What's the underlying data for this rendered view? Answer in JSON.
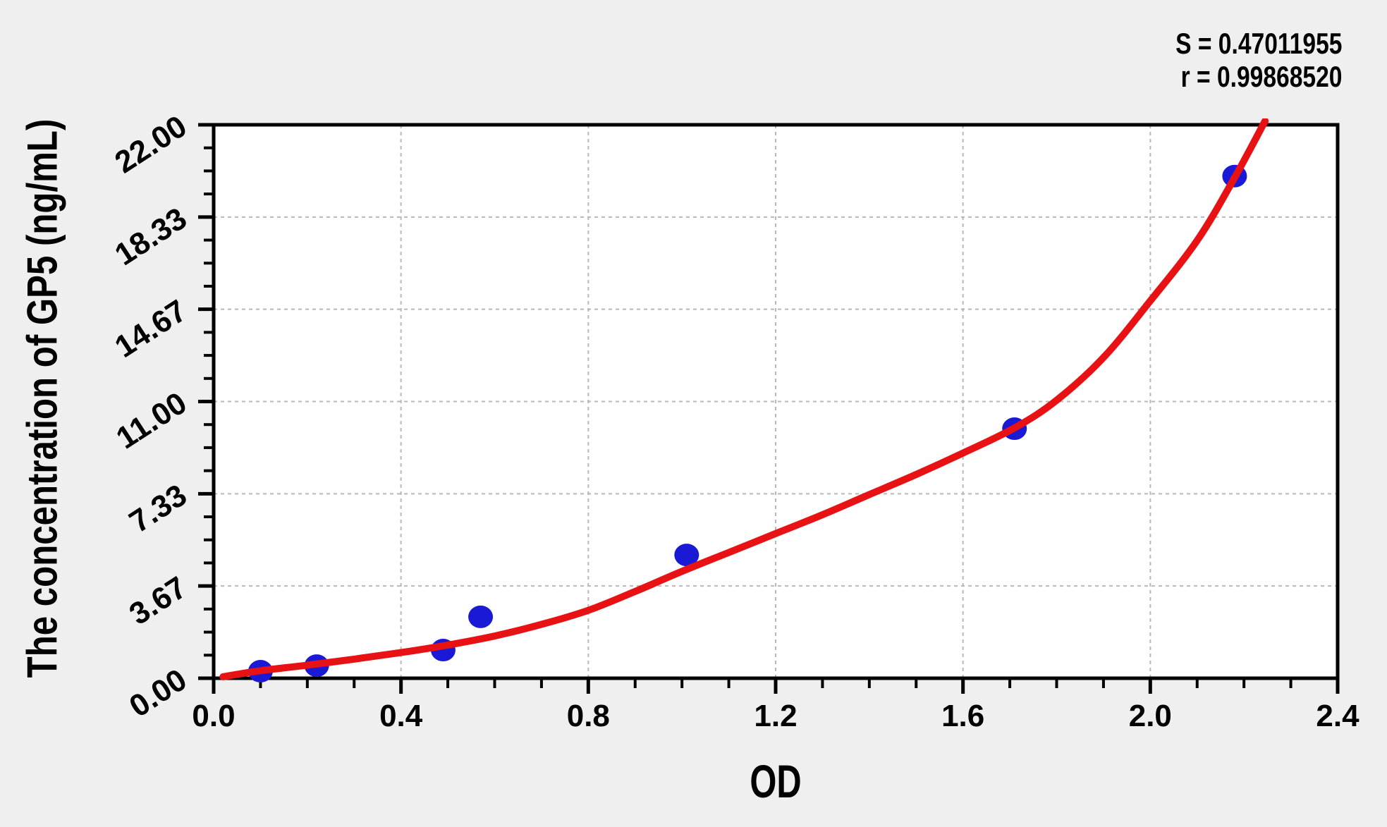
{
  "chart_data": {
    "type": "scatter",
    "title": "",
    "xlabel": "OD",
    "ylabel": "The concentration of GP5 (ng/mL)",
    "xlim": [
      0.0,
      2.4
    ],
    "ylim": [
      0.0,
      22.0
    ],
    "x_tick_labels": [
      "0.0",
      "0.4",
      "0.8",
      "1.2",
      "1.6",
      "2.0",
      "2.4"
    ],
    "x_tick_values": [
      0.0,
      0.4,
      0.8,
      1.2,
      1.6,
      2.0,
      2.4
    ],
    "y_tick_labels": [
      "0.00",
      "3.67",
      "7.33",
      "11.00",
      "14.67",
      "18.33",
      "22.00"
    ],
    "y_tick_values": [
      0.0,
      3.667,
      7.333,
      11.0,
      14.667,
      18.333,
      22.0
    ],
    "x_minor_step": 0.1,
    "y_minor_divisions_per_major": 4,
    "grid": "dashed gray lines at interior major ticks, horizontal and vertical",
    "legend_position": "none",
    "annotations": {
      "s_label": "S = 0.47011955",
      "r_label": "r = 0.99868520"
    },
    "points_note": "blue scatter points as [OD, concentration ng/mL]",
    "points": [
      [
        0.1,
        0.28
      ],
      [
        0.22,
        0.5
      ],
      [
        0.49,
        1.12
      ],
      [
        0.57,
        2.44
      ],
      [
        1.01,
        4.9
      ],
      [
        1.71,
        9.92
      ],
      [
        2.18,
        19.96
      ]
    ],
    "curve_note": "red fitted standard curve sampled as [OD, concentration ng/mL]",
    "curve": [
      [
        0.02,
        0.06
      ],
      [
        0.1,
        0.3
      ],
      [
        0.2,
        0.52
      ],
      [
        0.3,
        0.76
      ],
      [
        0.4,
        1.02
      ],
      [
        0.5,
        1.32
      ],
      [
        0.6,
        1.68
      ],
      [
        0.7,
        2.14
      ],
      [
        0.8,
        2.7
      ],
      [
        0.9,
        3.45
      ],
      [
        1.0,
        4.25
      ],
      [
        1.1,
        5.0
      ],
      [
        1.2,
        5.75
      ],
      [
        1.3,
        6.5
      ],
      [
        1.4,
        7.3
      ],
      [
        1.5,
        8.1
      ],
      [
        1.6,
        8.95
      ],
      [
        1.71,
        9.95
      ],
      [
        1.8,
        11.05
      ],
      [
        1.9,
        12.75
      ],
      [
        2.0,
        15.0
      ],
      [
        2.1,
        17.4
      ],
      [
        2.18,
        19.9
      ],
      [
        2.245,
        22.15
      ]
    ],
    "colors": {
      "curve": "#e81214",
      "points": "#1a1ad6",
      "grid": "#b8b8b8",
      "axis": "#000000",
      "background": "#efefef",
      "plot_background": "#ffffff",
      "text": "#000000"
    }
  }
}
